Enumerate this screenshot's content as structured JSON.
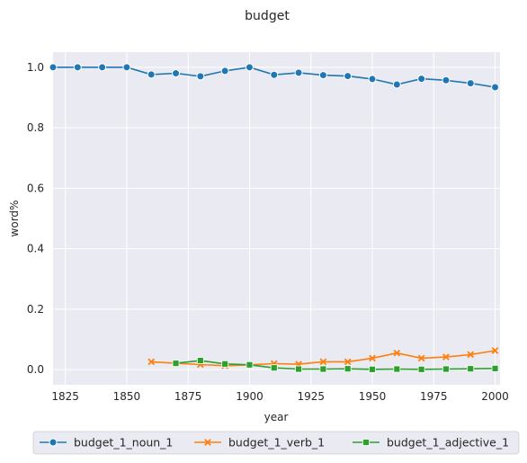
{
  "chart_data": {
    "type": "line",
    "title": "budget",
    "xlabel": "year",
    "ylabel": "word%",
    "xlim": [
      1820,
      2002
    ],
    "ylim": [
      -0.05,
      1.05
    ],
    "xticks": [
      "1825",
      "1850",
      "1875",
      "1900",
      "1925",
      "1950",
      "1975",
      "2000"
    ],
    "yticks": [
      "0.0",
      "0.2",
      "0.4",
      "0.6",
      "0.8",
      "1.0"
    ],
    "grid": true,
    "legend_position": "bottom",
    "series": [
      {
        "name": "budget_1_noun_1",
        "color": "#1f77b4",
        "marker": "circle",
        "x": [
          1820,
          1830,
          1840,
          1850,
          1860,
          1870,
          1880,
          1890,
          1900,
          1910,
          1920,
          1930,
          1940,
          1950,
          1960,
          1970,
          1980,
          1990,
          2000
        ],
        "y": [
          1.0,
          1.0,
          1.0,
          1.0,
          0.976,
          0.98,
          0.97,
          0.988,
          1.0,
          0.975,
          0.982,
          0.974,
          0.971,
          0.961,
          0.943,
          0.962,
          0.957,
          0.947,
          0.934
        ]
      },
      {
        "name": "budget_1_verb_1",
        "color": "#ff7f0e",
        "marker": "x",
        "x": [
          1860,
          1870,
          1880,
          1890,
          1900,
          1910,
          1920,
          1930,
          1940,
          1950,
          1960,
          1970,
          1980,
          1990,
          2000
        ],
        "y": [
          0.026,
          0.021,
          0.017,
          0.013,
          0.016,
          0.02,
          0.018,
          0.026,
          0.026,
          0.038,
          0.055,
          0.038,
          0.042,
          0.05,
          0.063
        ]
      },
      {
        "name": "budget_1_adjective_1",
        "color": "#2ca02c",
        "marker": "square",
        "x": [
          1870,
          1880,
          1890,
          1900,
          1910,
          1920,
          1930,
          1940,
          1950,
          1960,
          1970,
          1980,
          1990,
          2000
        ],
        "y": [
          0.021,
          0.03,
          0.019,
          0.016,
          0.006,
          0.002,
          0.002,
          0.003,
          0.001,
          0.002,
          0.001,
          0.002,
          0.003,
          0.004
        ]
      }
    ]
  }
}
